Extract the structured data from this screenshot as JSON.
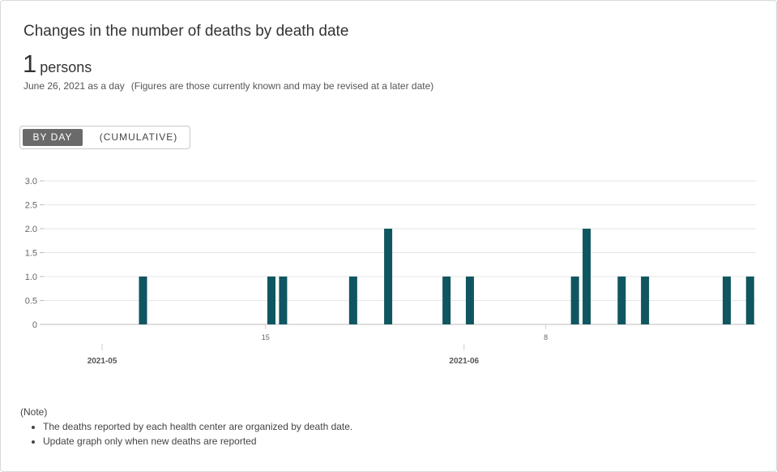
{
  "header": {
    "title": "Changes in the number of deaths by death date",
    "value": "1",
    "unit": "persons",
    "date_line": "June 26, 2021 as a day",
    "date_note": "(Figures are those currently known and may be revised at a later date)"
  },
  "toggle": {
    "by_day_label": "BY DAY",
    "cumulative_label": "(CUMULATIVE)"
  },
  "colors": {
    "bar": "#0f5661",
    "grid": "#e6e6e6",
    "toggle_active": "#6a6a6a"
  },
  "chart_data": {
    "type": "bar",
    "x_range": [
      "2021-04-26",
      "2021-06-26"
    ],
    "ylim": [
      0,
      3.0
    ],
    "y_ticks": [
      "0",
      "0.5",
      "1.0",
      "1.5",
      "2.0",
      "2.5",
      "3.0"
    ],
    "x_minor_ticks": [
      {
        "date": "2021-05-15",
        "label": "15"
      },
      {
        "date": "2021-06-08",
        "label": "8"
      }
    ],
    "x_major_ticks": [
      {
        "date": "2021-05-01",
        "label": "2021-05"
      },
      {
        "date": "2021-06-01",
        "label": "2021-06"
      }
    ],
    "series": [
      {
        "points": [
          {
            "date": "2021-05-04",
            "value": 1
          },
          {
            "date": "2021-05-15",
            "value": 1
          },
          {
            "date": "2021-05-16",
            "value": 1
          },
          {
            "date": "2021-05-22",
            "value": 1
          },
          {
            "date": "2021-05-25",
            "value": 2
          },
          {
            "date": "2021-05-30",
            "value": 1
          },
          {
            "date": "2021-06-01",
            "value": 1
          },
          {
            "date": "2021-06-10",
            "value": 1
          },
          {
            "date": "2021-06-11",
            "value": 2
          },
          {
            "date": "2021-06-14",
            "value": 1
          },
          {
            "date": "2021-06-16",
            "value": 1
          },
          {
            "date": "2021-06-23",
            "value": 1
          },
          {
            "date": "2021-06-25",
            "value": 1
          }
        ]
      }
    ],
    "grid": true
  },
  "notes": {
    "heading": "(Note)",
    "items": [
      "The deaths reported by each health center are organized by death date.",
      "Update graph only when new deaths are reported"
    ]
  }
}
